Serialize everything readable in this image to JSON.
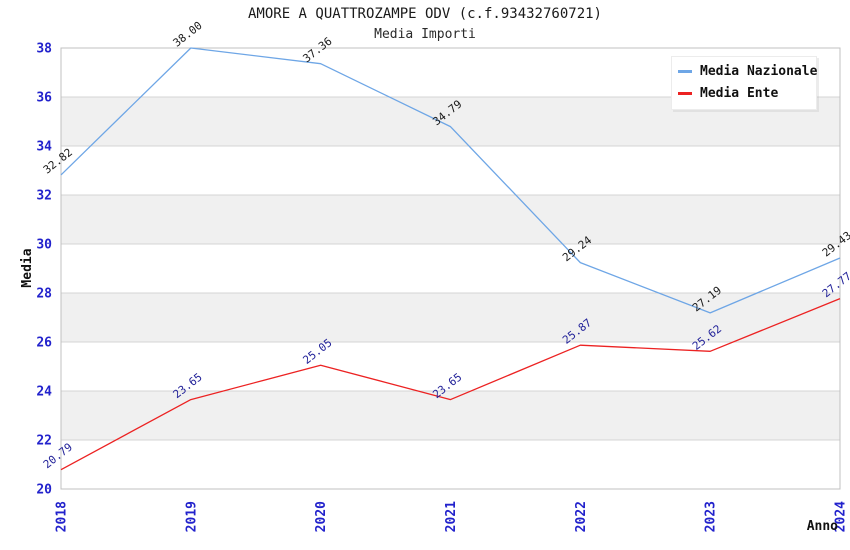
{
  "header": {
    "title": "AMORE A QUATTROZAMPE ODV (c.f.93432760721)",
    "subtitle": "Media Importi"
  },
  "axes": {
    "y_title": "Media",
    "x_title": "Anno"
  },
  "legend": {
    "position": "top-right",
    "items": [
      {
        "label": "Media Nazionale",
        "color": "#6EA6E6"
      },
      {
        "label": "Media Ente",
        "color": "#EC2222"
      }
    ]
  },
  "chart_data": {
    "type": "line",
    "title": "AMORE A QUATTROZAMPE ODV (c.f.93432760721)",
    "subtitle": "Media Importi",
    "xlabel": "Anno",
    "ylabel": "Media",
    "x": [
      2018,
      2019,
      2020,
      2021,
      2022,
      2023,
      2024
    ],
    "series": [
      {
        "name": "Media Nazionale",
        "color": "#6EA6E6",
        "label_color": "#1a1a1a",
        "values": [
          32.82,
          38.0,
          37.36,
          34.79,
          29.24,
          27.19,
          29.43
        ]
      },
      {
        "name": "Media Ente",
        "color": "#EC2222",
        "label_color": "#222299",
        "values": [
          20.79,
          23.65,
          25.05,
          23.65,
          25.87,
          25.62,
          27.77
        ]
      }
    ],
    "ylim": [
      20,
      38
    ],
    "yticks": [
      20,
      22,
      24,
      26,
      28,
      30,
      32,
      34,
      36,
      38
    ],
    "grid": "horizontal",
    "alternating_bands": true,
    "legend_position": "top-right",
    "style": {
      "tick_label_color": "#2222CC",
      "band_color": "#F0F0F0",
      "grid_color": "#D4D4D4",
      "border_color": "#C0C0C0"
    }
  }
}
